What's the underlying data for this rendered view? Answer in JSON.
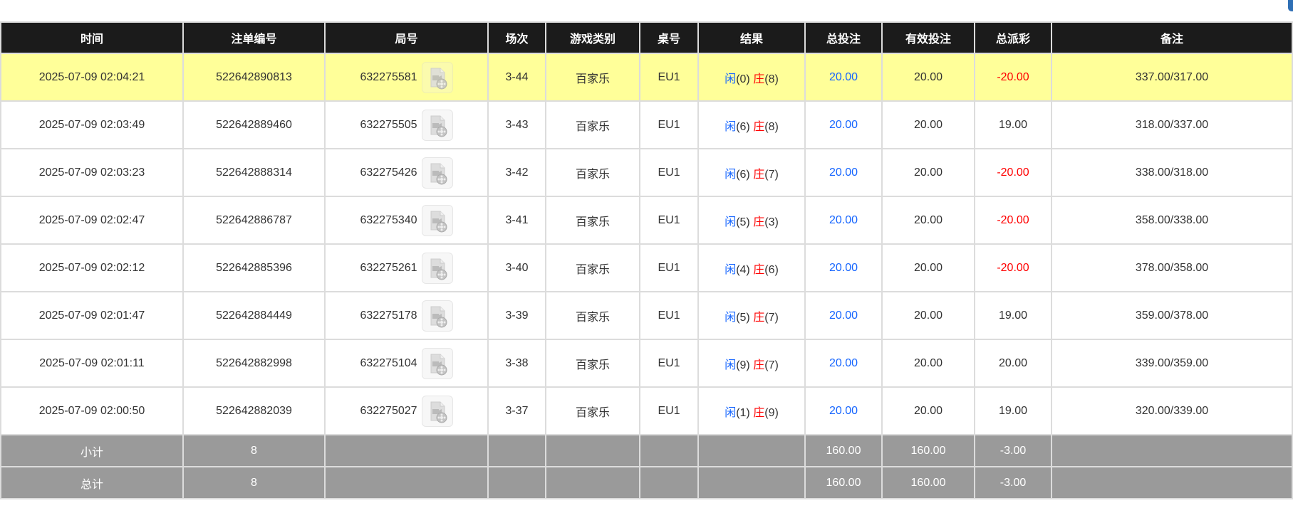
{
  "columns": [
    "时间",
    "注单编号",
    "局号",
    "场次",
    "游戏类别",
    "桌号",
    "结果",
    "总投注",
    "有效投注",
    "总派彩",
    "备注"
  ],
  "colors": {
    "header_bg": "#1b1b1b",
    "highlight_row": "#ffff99",
    "summary_bg": "#9a9a9a",
    "player": "#1565ff",
    "banker": "#ff0000",
    "negative": "#ff0000"
  },
  "player_label": "闲",
  "banker_label": "庄",
  "rows": [
    {
      "time": "2025-07-09 02:04:21",
      "bet_id": "522642890813",
      "round": "632275581",
      "session": "3-44",
      "game": "百家乐",
      "table": "EU1",
      "player": "(0)",
      "banker": "(8)",
      "total_bet": "20.00",
      "valid_bet": "20.00",
      "payout": "-20.00",
      "note": "337.00/317.00",
      "highlight": true
    },
    {
      "time": "2025-07-09 02:03:49",
      "bet_id": "522642889460",
      "round": "632275505",
      "session": "3-43",
      "game": "百家乐",
      "table": "EU1",
      "player": "(6)",
      "banker": "(8)",
      "total_bet": "20.00",
      "valid_bet": "20.00",
      "payout": "19.00",
      "note": "318.00/337.00"
    },
    {
      "time": "2025-07-09 02:03:23",
      "bet_id": "522642888314",
      "round": "632275426",
      "session": "3-42",
      "game": "百家乐",
      "table": "EU1",
      "player": "(6)",
      "banker": "(7)",
      "total_bet": "20.00",
      "valid_bet": "20.00",
      "payout": "-20.00",
      "note": "338.00/318.00"
    },
    {
      "time": "2025-07-09 02:02:47",
      "bet_id": "522642886787",
      "round": "632275340",
      "session": "3-41",
      "game": "百家乐",
      "table": "EU1",
      "player": "(5)",
      "banker": "(3)",
      "total_bet": "20.00",
      "valid_bet": "20.00",
      "payout": "-20.00",
      "note": "358.00/338.00"
    },
    {
      "time": "2025-07-09 02:02:12",
      "bet_id": "522642885396",
      "round": "632275261",
      "session": "3-40",
      "game": "百家乐",
      "table": "EU1",
      "player": "(4)",
      "banker": "(6)",
      "total_bet": "20.00",
      "valid_bet": "20.00",
      "payout": "-20.00",
      "note": "378.00/358.00"
    },
    {
      "time": "2025-07-09 02:01:47",
      "bet_id": "522642884449",
      "round": "632275178",
      "session": "3-39",
      "game": "百家乐",
      "table": "EU1",
      "player": "(5)",
      "banker": "(7)",
      "total_bet": "20.00",
      "valid_bet": "20.00",
      "payout": "19.00",
      "note": "359.00/378.00"
    },
    {
      "time": "2025-07-09 02:01:11",
      "bet_id": "522642882998",
      "round": "632275104",
      "session": "3-38",
      "game": "百家乐",
      "table": "EU1",
      "player": "(9)",
      "banker": "(7)",
      "total_bet": "20.00",
      "valid_bet": "20.00",
      "payout": "20.00",
      "note": "339.00/359.00"
    },
    {
      "time": "2025-07-09 02:00:50",
      "bet_id": "522642882039",
      "round": "632275027",
      "session": "3-37",
      "game": "百家乐",
      "table": "EU1",
      "player": "(1)",
      "banker": "(9)",
      "total_bet": "20.00",
      "valid_bet": "20.00",
      "payout": "19.00",
      "note": "320.00/339.00"
    }
  ],
  "summary": [
    {
      "label": "小计",
      "count": "8",
      "total_bet": "160.00",
      "valid_bet": "160.00",
      "payout": "-3.00"
    },
    {
      "label": "总计",
      "count": "8",
      "total_bet": "160.00",
      "valid_bet": "160.00",
      "payout": "-3.00"
    }
  ],
  "icons": {
    "replay": "video-file-icon"
  }
}
